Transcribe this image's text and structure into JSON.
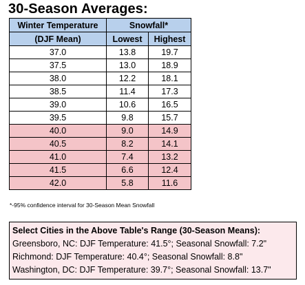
{
  "title": "30-Season Averages:",
  "table": {
    "header_row1": {
      "temp": "Winter Temperature",
      "snow": "Snowfall*"
    },
    "header_row2": {
      "temp": "(DJF Mean)",
      "lowest": "Lowest",
      "highest": "Highest"
    },
    "rows": [
      {
        "temp": "37.0",
        "lowest": "13.8",
        "highest": "19.7",
        "highlight": false
      },
      {
        "temp": "37.5",
        "lowest": "13.0",
        "highest": "18.9",
        "highlight": false
      },
      {
        "temp": "38.0",
        "lowest": "12.2",
        "highest": "18.1",
        "highlight": false
      },
      {
        "temp": "38.5",
        "lowest": "11.4",
        "highest": "17.3",
        "highlight": false
      },
      {
        "temp": "39.0",
        "lowest": "10.6",
        "highest": "16.5",
        "highlight": false
      },
      {
        "temp": "39.5",
        "lowest": "9.8",
        "highest": "15.7",
        "highlight": false
      },
      {
        "temp": "40.0",
        "lowest": "9.0",
        "highest": "14.9",
        "highlight": true
      },
      {
        "temp": "40.5",
        "lowest": "8.2",
        "highest": "14.1",
        "highlight": true
      },
      {
        "temp": "41.0",
        "lowest": "7.4",
        "highest": "13.2",
        "highlight": true
      },
      {
        "temp": "41.5",
        "lowest": "6.6",
        "highest": "12.4",
        "highlight": true
      },
      {
        "temp": "42.0",
        "lowest": "5.8",
        "highest": "11.6",
        "highlight": true
      }
    ]
  },
  "footnote": "*-95% confidence interval for 30-Season Mean Snowfall",
  "cities": {
    "title": "Select Cities in the Above Table's Range (30-Season Means):",
    "lines": [
      "Greensboro, NC: DJF Temperature: 41.5°; Seasonal Snowfall: 7.2\"",
      "Richmond: DJF Temperature: 40.4°; Seasonal Snowfall: 8.8\"",
      "Washington, DC: DJF Temperature: 39.7°; Seasonal Snowfall: 13.7\""
    ]
  },
  "colors": {
    "header_bg": "#b8d0ec",
    "highlight_bg": "#f4c4c8",
    "cities_bg": "#fce9ec"
  }
}
